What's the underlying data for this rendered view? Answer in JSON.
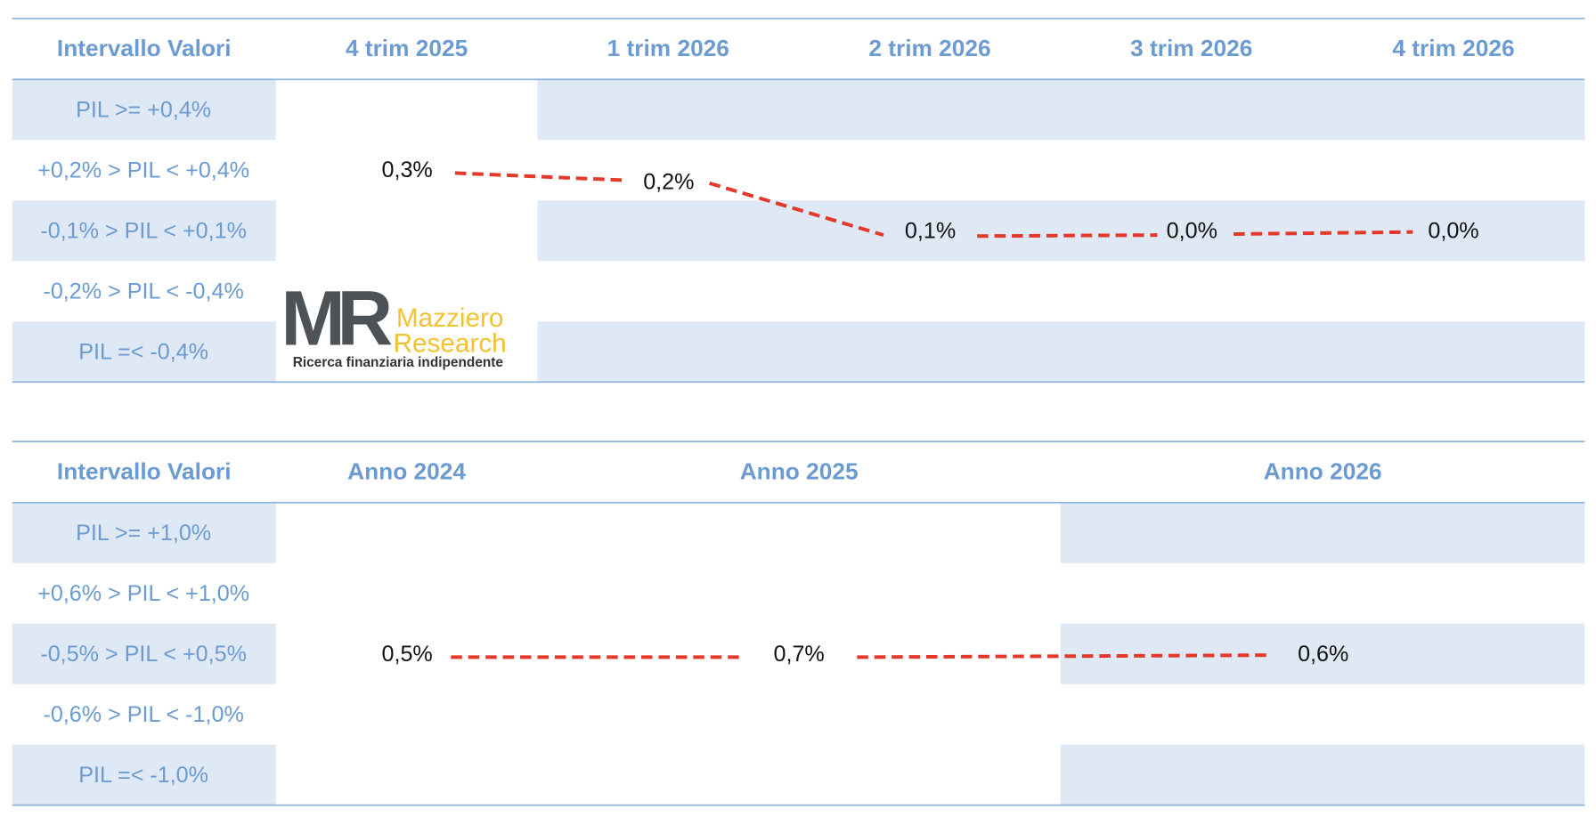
{
  "table1": {
    "header": [
      "Intervallo Valori",
      "4 trim 2025",
      "1 trim 2026",
      "2 trim 2026",
      "3 trim 2026",
      "4 trim 2026"
    ],
    "rows": [
      "PIL >= +0,4%",
      "+0,2% > PIL < +0,4%",
      "-0,1% > PIL < +0,1%",
      "-0,2% > PIL < -0,4%",
      "PIL =< -0,4%"
    ],
    "values": [
      "0,3%",
      "0,2%",
      "0,1%",
      "0,0%",
      "0,0%"
    ]
  },
  "table2": {
    "header": [
      "Intervallo Valori",
      "Anno 2024",
      "Anno 2025",
      "Anno 2026"
    ],
    "rows": [
      "PIL >= +1,0%",
      "+0,6% > PIL < +1,0%",
      "-0,5% > PIL < +0,5%",
      "-0,6% > PIL < -1,0%",
      "PIL =< -1,0%"
    ],
    "values": [
      "0,5%",
      "0,7%",
      "0,6%"
    ]
  },
  "logo": {
    "mark": "MR",
    "name": "Mazziero",
    "name2": "Research",
    "tagline": "Ricerca finanziaria indipendente"
  }
}
